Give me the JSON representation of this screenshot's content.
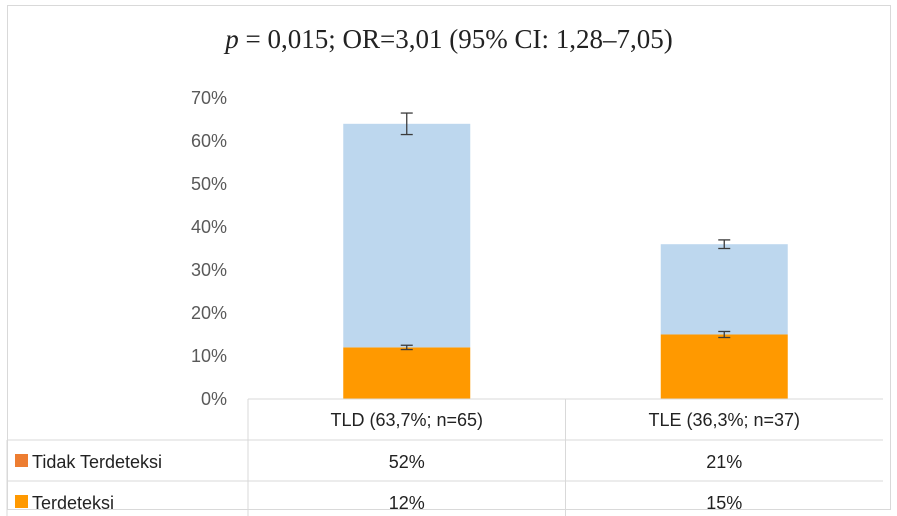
{
  "title": {
    "p_symbol": "p",
    "rest": " = 0,015; OR=3,01 (95% CI: 1,28–7,05)"
  },
  "colors": {
    "tidak_terdeteksi": "#bdd7ee",
    "terdeteksi": "#ff9900",
    "tidak_legend": "#ed7d31",
    "error_bar": "#3b3b3b",
    "grid": "#d9d9d9"
  },
  "chart_data": {
    "type": "bar",
    "stacked": true,
    "categories": [
      "TLD (63,7%; n=65)",
      "TLE (36,3%; n=37)"
    ],
    "y_ticks": [
      "0%",
      "10%",
      "20%",
      "30%",
      "40%",
      "50%",
      "60%",
      "70%"
    ],
    "ylim": [
      0,
      70
    ],
    "series": [
      {
        "name": "Terdeteksi",
        "values": [
          12,
          15
        ],
        "labels": [
          "12%",
          "15%"
        ],
        "error": [
          0.5,
          0.7
        ]
      },
      {
        "name": "Tidak Terdeteksi",
        "values": [
          52,
          21
        ],
        "labels": [
          "52%",
          "21%"
        ],
        "error": [
          2.5,
          1.0
        ]
      }
    ],
    "data_table": true,
    "table_row_order": [
      "Tidak Terdeteksi",
      "Terdeteksi"
    ]
  }
}
